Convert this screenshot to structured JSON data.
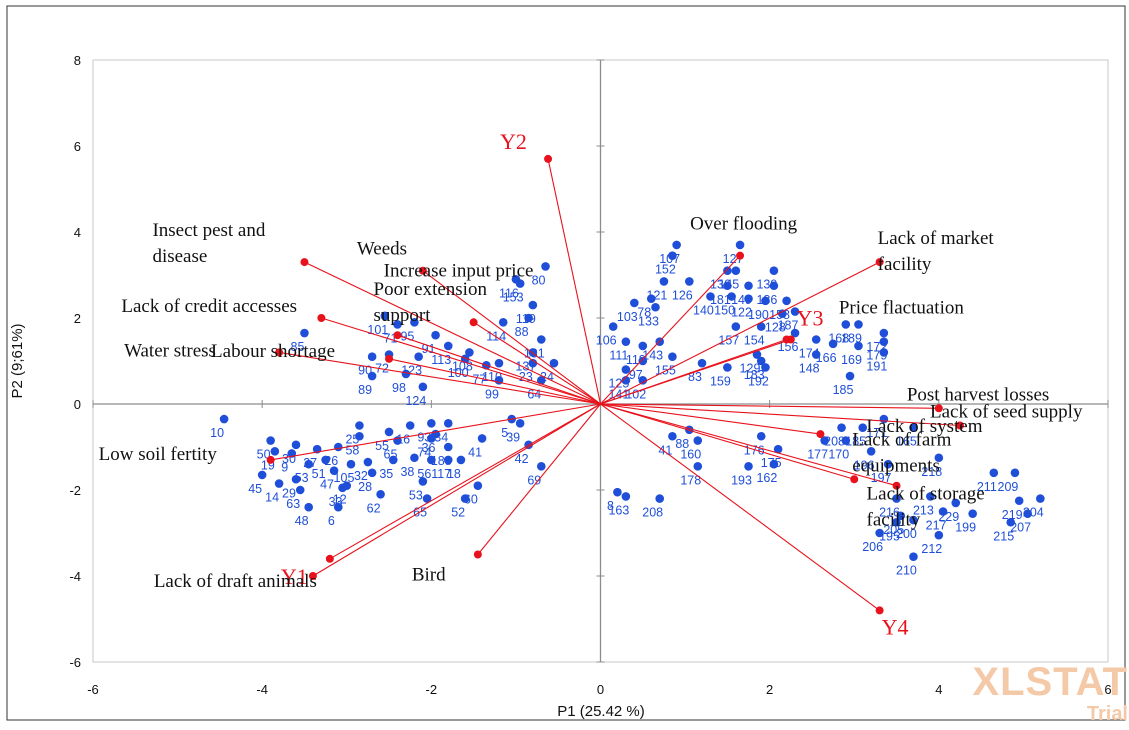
{
  "chart_data": {
    "type": "scatter",
    "subtype": "biplot",
    "title": "",
    "xlabel": "P1 (25.42 %)",
    "ylabel": "P2 (9;61%)",
    "xlim": [
      -6,
      6
    ],
    "ylim": [
      -6,
      8
    ],
    "x_ticks": [
      -6,
      -4,
      -2,
      0,
      2,
      4,
      6
    ],
    "y_ticks": [
      -6,
      -4,
      -2,
      0,
      2,
      4,
      6,
      8
    ],
    "grid": false,
    "legend": "none",
    "colors": {
      "observations": "#1f4fd8",
      "vectors": "#e8121c",
      "axes": "#8c8c8c"
    },
    "watermark": {
      "line1": "XLSTAT",
      "line2": "Trial"
    },
    "response_vectors": [
      {
        "label": "Y1",
        "x": -3.4,
        "y": -4.0
      },
      {
        "label": "Y2",
        "x": -0.62,
        "y": 5.7
      },
      {
        "label": "Y3",
        "x": 2.2,
        "y": 1.5
      },
      {
        "label": "Y4",
        "x": 3.3,
        "y": -4.8
      }
    ],
    "variable_vectors": [
      {
        "label": "Insect pest and disease",
        "lines": [
          "Insect pest and",
          "disease"
        ],
        "x": -3.5,
        "y": 3.3
      },
      {
        "label": "Weeds",
        "lines": [
          "Weeds"
        ],
        "x": -2.1,
        "y": 3.1
      },
      {
        "label": "Lack of credit accesses",
        "lines": [
          "Lack of credit accesses"
        ],
        "x": -3.3,
        "y": 2.0
      },
      {
        "label": "Poor extension support",
        "lines": [
          "Poor extension",
          "support"
        ],
        "x": -2.4,
        "y": 1.6
      },
      {
        "label": "Increase input price",
        "lines": [
          "Increase input  price"
        ],
        "x": -1.5,
        "y": 1.9
      },
      {
        "label": "Labour shortage",
        "lines": [
          "Labour shortage"
        ],
        "x": -2.5,
        "y": 1.05
      },
      {
        "label": "Water stress",
        "lines": [
          "Water stress"
        ],
        "x": -3.8,
        "y": 1.2
      },
      {
        "label": "Low soil fertility",
        "lines": [
          "Low soil fertity"
        ],
        "x": -3.9,
        "y": -1.3
      },
      {
        "label": "Lack of draft animals",
        "lines": [
          "Lack of draft animals"
        ],
        "x": -3.2,
        "y": -3.6
      },
      {
        "label": "Bird",
        "lines": [
          "Bird"
        ],
        "x": -1.45,
        "y": -3.5
      },
      {
        "label": "Over flooding",
        "lines": [
          "Over flooding"
        ],
        "x": 1.65,
        "y": 3.45
      },
      {
        "label": "Lack of market facility",
        "lines": [
          "Lack of market",
          "facility"
        ],
        "x": 3.3,
        "y": 3.3
      },
      {
        "label": "Price fluctuation",
        "lines": [
          "Price flactuation"
        ],
        "x": 2.25,
        "y": 1.5
      },
      {
        "label": "Post harvest losses",
        "lines": [
          "Post harvest losses"
        ],
        "x": 4.0,
        "y": -0.1
      },
      {
        "label": "Lack of seed supply",
        "lines": [
          "Lack of seed supply"
        ],
        "x": 4.25,
        "y": -0.5
      },
      {
        "label": "Lack of farm equipments",
        "lines": [
          "Lack of farm",
          "equipments"
        ],
        "x": 3.0,
        "y": -1.75
      },
      {
        "label": "Lack of system",
        "lines": [
          "Lack of system"
        ],
        "x": 2.6,
        "y": -0.7
      },
      {
        "label": "Lack of storage facility",
        "lines": [
          "Lack of storage",
          "facility"
        ],
        "x": 3.5,
        "y": -1.9
      }
    ],
    "observations": [
      {
        "label": "10",
        "x": -4.45,
        "y": -0.35
      },
      {
        "label": "50",
        "x": -3.9,
        "y": -0.85
      },
      {
        "label": "30",
        "x": -3.6,
        "y": -0.95
      },
      {
        "label": "19",
        "x": -3.85,
        "y": -1.1
      },
      {
        "label": "9",
        "x": -3.65,
        "y": -1.15
      },
      {
        "label": "45",
        "x": -4.0,
        "y": -1.65
      },
      {
        "label": "14",
        "x": -3.8,
        "y": -1.85
      },
      {
        "label": "29",
        "x": -3.6,
        "y": -1.75
      },
      {
        "label": "63",
        "x": -3.55,
        "y": -2.0
      },
      {
        "label": "53",
        "x": -3.45,
        "y": -1.4
      },
      {
        "label": "27",
        "x": -3.35,
        "y": -1.05
      },
      {
        "label": "47",
        "x": -3.15,
        "y": -1.55
      },
      {
        "label": "51",
        "x": -3.25,
        "y": -1.3
      },
      {
        "label": "26",
        "x": -3.1,
        "y": -1.0
      },
      {
        "label": "105",
        "x": -2.95,
        "y": -1.4
      },
      {
        "label": "58",
        "x": -2.85,
        "y": -0.75
      },
      {
        "label": "25",
        "x": -2.85,
        "y": -0.5
      },
      {
        "label": "32",
        "x": -2.75,
        "y": -1.35
      },
      {
        "label": "28",
        "x": -2.7,
        "y": -1.6
      },
      {
        "label": "33",
        "x": -3.05,
        "y": -1.95
      },
      {
        "label": "12",
        "x": -3.0,
        "y": -1.9
      },
      {
        "label": "48",
        "x": -3.45,
        "y": -2.4
      },
      {
        "label": "6",
        "x": -3.1,
        "y": -2.4
      },
      {
        "label": "62",
        "x": -2.6,
        "y": -2.1
      },
      {
        "label": "55",
        "x": -2.5,
        "y": -0.65
      },
      {
        "label": "65",
        "x": -2.4,
        "y": -0.85
      },
      {
        "label": "35",
        "x": -2.45,
        "y": -1.3
      },
      {
        "label": "38",
        "x": -2.2,
        "y": -1.25
      },
      {
        "label": "16",
        "x": -2.25,
        "y": -0.5
      },
      {
        "label": "74",
        "x": -2.0,
        "y": -0.8
      },
      {
        "label": "36",
        "x": -1.95,
        "y": -0.7
      },
      {
        "label": "93",
        "x": -2.0,
        "y": -0.45
      },
      {
        "label": "56",
        "x": -2.0,
        "y": -1.3
      },
      {
        "label": "117",
        "x": -1.8,
        "y": -1.3
      },
      {
        "label": "18",
        "x": -1.65,
        "y": -1.3
      },
      {
        "label": "34",
        "x": -1.8,
        "y": -0.45
      },
      {
        "label": "188",
        "x": -1.8,
        "y": -1.0
      },
      {
        "label": "41",
        "x": -1.4,
        "y": -0.8
      },
      {
        "label": "53",
        "x": -2.1,
        "y": -1.8
      },
      {
        "label": "65",
        "x": -2.05,
        "y": -2.2
      },
      {
        "label": "60",
        "x": -1.45,
        "y": -1.9
      },
      {
        "label": "52",
        "x": -1.6,
        "y": -2.2
      },
      {
        "label": "42",
        "x": -0.85,
        "y": -0.95
      },
      {
        "label": "69",
        "x": -0.7,
        "y": -1.45
      },
      {
        "label": "5",
        "x": -1.05,
        "y": -0.35
      },
      {
        "label": "39",
        "x": -0.95,
        "y": -0.45
      },
      {
        "label": "101",
        "x": -2.55,
        "y": 2.05
      },
      {
        "label": "71",
        "x": -2.4,
        "y": 1.85
      },
      {
        "label": "85",
        "x": -3.5,
        "y": 1.65
      },
      {
        "label": "95",
        "x": -2.2,
        "y": 1.9
      },
      {
        "label": "72",
        "x": -2.5,
        "y": 1.15
      },
      {
        "label": "90",
        "x": -2.7,
        "y": 1.1
      },
      {
        "label": "89",
        "x": -2.7,
        "y": 0.65
      },
      {
        "label": "123",
        "x": -2.15,
        "y": 1.1
      },
      {
        "label": "124",
        "x": -2.1,
        "y": 0.4
      },
      {
        "label": "98",
        "x": -2.3,
        "y": 0.7
      },
      {
        "label": "91",
        "x": -1.95,
        "y": 1.6
      },
      {
        "label": "100",
        "x": -1.6,
        "y": 1.05
      },
      {
        "label": "113",
        "x": -1.8,
        "y": 1.35
      },
      {
        "label": "108",
        "x": -1.55,
        "y": 1.2
      },
      {
        "label": "77",
        "x": -1.35,
        "y": 0.9
      },
      {
        "label": "110",
        "x": -1.2,
        "y": 0.95
      },
      {
        "label": "99",
        "x": -1.2,
        "y": 0.55
      },
      {
        "label": "131",
        "x": -0.7,
        "y": 1.5
      },
      {
        "label": "137",
        "x": -0.8,
        "y": 1.2
      },
      {
        "label": "23",
        "x": -0.8,
        "y": 0.95
      },
      {
        "label": "24",
        "x": -0.55,
        "y": 0.95
      },
      {
        "label": "64",
        "x": -0.7,
        "y": 0.55
      },
      {
        "label": "116",
        "x": -1.0,
        "y": 2.9
      },
      {
        "label": "153",
        "x": -0.95,
        "y": 2.8
      },
      {
        "label": "80",
        "x": -0.65,
        "y": 3.2
      },
      {
        "label": "114",
        "x": -1.15,
        "y": 1.9
      },
      {
        "label": "88",
        "x": -0.85,
        "y": 2.0
      },
      {
        "label": "119",
        "x": -0.8,
        "y": 2.3
      },
      {
        "label": "106",
        "x": 0.15,
        "y": 1.8
      },
      {
        "label": "103",
        "x": 0.4,
        "y": 2.35
      },
      {
        "label": "78",
        "x": 0.6,
        "y": 2.45
      },
      {
        "label": "133",
        "x": 0.65,
        "y": 2.25
      },
      {
        "label": "111",
        "x": 0.3,
        "y": 1.45
      },
      {
        "label": "118",
        "x": 0.5,
        "y": 1.35
      },
      {
        "label": "143",
        "x": 0.7,
        "y": 1.45
      },
      {
        "label": "97",
        "x": 0.5,
        "y": 1.0
      },
      {
        "label": "125",
        "x": 0.3,
        "y": 0.8
      },
      {
        "label": "141",
        "x": 0.3,
        "y": 0.55
      },
      {
        "label": "102",
        "x": 0.5,
        "y": 0.55
      },
      {
        "label": "155",
        "x": 0.85,
        "y": 1.1
      },
      {
        "label": "83",
        "x": 1.2,
        "y": 0.95
      },
      {
        "label": "107",
        "x": 0.9,
        "y": 3.7
      },
      {
        "label": "152",
        "x": 0.85,
        "y": 3.45
      },
      {
        "label": "121",
        "x": 0.75,
        "y": 2.85
      },
      {
        "label": "126",
        "x": 1.05,
        "y": 2.85
      },
      {
        "label": "140",
        "x": 1.3,
        "y": 2.5
      },
      {
        "label": "127",
        "x": 1.65,
        "y": 3.7
      },
      {
        "label": "139",
        "x": 2.05,
        "y": 3.1
      },
      {
        "label": "136",
        "x": 1.5,
        "y": 3.1
      },
      {
        "label": "145",
        "x": 1.6,
        "y": 3.1
      },
      {
        "label": "181",
        "x": 1.5,
        "y": 2.75
      },
      {
        "label": "149",
        "x": 1.75,
        "y": 2.75
      },
      {
        "label": "186",
        "x": 2.05,
        "y": 2.75
      },
      {
        "label": "150",
        "x": 1.55,
        "y": 2.5
      },
      {
        "label": "122",
        "x": 1.75,
        "y": 2.45
      },
      {
        "label": "190",
        "x": 1.95,
        "y": 2.4
      },
      {
        "label": "158",
        "x": 2.2,
        "y": 2.4
      },
      {
        "label": "128",
        "x": 2.15,
        "y": 2.1
      },
      {
        "label": "187",
        "x": 2.3,
        "y": 2.15
      },
      {
        "label": "157",
        "x": 1.6,
        "y": 1.8
      },
      {
        "label": "154",
        "x": 1.9,
        "y": 1.8
      },
      {
        "label": "156",
        "x": 2.3,
        "y": 1.65
      },
      {
        "label": "174",
        "x": 2.55,
        "y": 1.5
      },
      {
        "label": "166",
        "x": 2.75,
        "y": 1.4
      },
      {
        "label": "168",
        "x": 2.9,
        "y": 1.85
      },
      {
        "label": "189",
        "x": 3.05,
        "y": 1.85
      },
      {
        "label": "169",
        "x": 3.05,
        "y": 1.35
      },
      {
        "label": "172",
        "x": 3.35,
        "y": 1.65
      },
      {
        "label": "179",
        "x": 3.35,
        "y": 1.45
      },
      {
        "label": "191",
        "x": 3.35,
        "y": 1.2
      },
      {
        "label": "148",
        "x": 2.55,
        "y": 1.15
      },
      {
        "label": "183",
        "x": 1.9,
        "y": 1.0
      },
      {
        "label": "129",
        "x": 1.85,
        "y": 1.15
      },
      {
        "label": "192",
        "x": 1.95,
        "y": 0.85
      },
      {
        "label": "159",
        "x": 1.5,
        "y": 0.85
      },
      {
        "label": "185",
        "x": 2.95,
        "y": 0.65
      },
      {
        "label": "171",
        "x": 3.35,
        "y": -0.35
      },
      {
        "label": "165",
        "x": 3.7,
        "y": -0.55
      },
      {
        "label": "208",
        "x": 2.85,
        "y": -0.55
      },
      {
        "label": "185",
        "x": 3.1,
        "y": -0.55
      },
      {
        "label": "177",
        "x": 2.65,
        "y": -0.85
      },
      {
        "label": "170",
        "x": 2.9,
        "y": -0.85
      },
      {
        "label": "196",
        "x": 3.2,
        "y": -1.1
      },
      {
        "label": "197",
        "x": 3.4,
        "y": -1.4
      },
      {
        "label": "218",
        "x": 4.0,
        "y": -1.25
      },
      {
        "label": "211",
        "x": 4.65,
        "y": -1.6
      },
      {
        "label": "209",
        "x": 4.9,
        "y": -1.6
      },
      {
        "label": "219",
        "x": 4.95,
        "y": -2.25
      },
      {
        "label": "204",
        "x": 5.2,
        "y": -2.2
      },
      {
        "label": "207",
        "x": 5.05,
        "y": -2.55
      },
      {
        "label": "215",
        "x": 4.85,
        "y": -2.75
      },
      {
        "label": "199",
        "x": 4.4,
        "y": -2.55
      },
      {
        "label": "212",
        "x": 4.0,
        "y": -3.05
      },
      {
        "label": "217",
        "x": 4.05,
        "y": -2.5
      },
      {
        "label": "200",
        "x": 3.7,
        "y": -2.7
      },
      {
        "label": "205",
        "x": 3.55,
        "y": -2.6
      },
      {
        "label": "195",
        "x": 3.5,
        "y": -2.75
      },
      {
        "label": "206",
        "x": 3.3,
        "y": -3.0
      },
      {
        "label": "210",
        "x": 3.7,
        "y": -3.55
      },
      {
        "label": "216",
        "x": 3.5,
        "y": -2.2
      },
      {
        "label": "213",
        "x": 3.9,
        "y": -2.15
      },
      {
        "label": "229",
        "x": 4.2,
        "y": -2.3
      },
      {
        "label": "176",
        "x": 1.9,
        "y": -0.75
      },
      {
        "label": "175",
        "x": 2.1,
        "y": -1.05
      },
      {
        "label": "162",
        "x": 2.05,
        "y": -1.4
      },
      {
        "label": "193",
        "x": 1.75,
        "y": -1.45
      },
      {
        "label": "88",
        "x": 1.05,
        "y": -0.6
      },
      {
        "label": "41",
        "x": 0.85,
        "y": -0.75
      },
      {
        "label": "160",
        "x": 1.15,
        "y": -0.85
      },
      {
        "label": "178",
        "x": 1.15,
        "y": -1.45
      },
      {
        "label": "208",
        "x": 0.7,
        "y": -2.2
      },
      {
        "label": "163",
        "x": 0.3,
        "y": -2.15
      },
      {
        "label": "8",
        "x": 0.2,
        "y": -2.05
      }
    ]
  }
}
